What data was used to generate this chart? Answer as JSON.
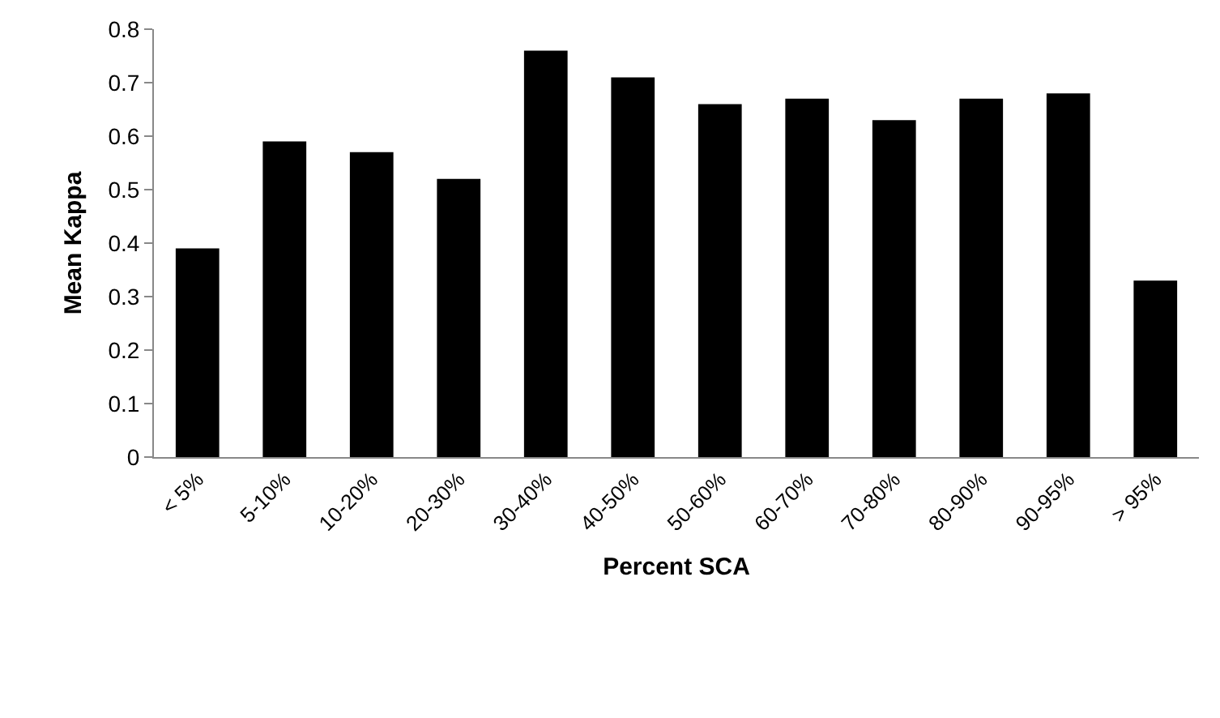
{
  "chart_data": {
    "type": "bar",
    "xlabel": "Percent SCA",
    "ylabel": "Mean Kappa",
    "categories": [
      "< 5%",
      "5-10%",
      "10-20%",
      "20-30%",
      "30-40%",
      "40-50%",
      "50-60%",
      "60-70%",
      "70-80%",
      "80-90%",
      "90-95%",
      "> 95%"
    ],
    "values": [
      0.39,
      0.59,
      0.57,
      0.52,
      0.76,
      0.71,
      0.66,
      0.67,
      0.63,
      0.67,
      0.68,
      0.33
    ],
    "color": "#000000",
    "ylim": [
      0,
      0.8
    ],
    "yticks": [
      0,
      0.1,
      0.2,
      0.3,
      0.4,
      0.5,
      0.6,
      0.7,
      0.8
    ],
    "grid": false,
    "legend": false
  }
}
